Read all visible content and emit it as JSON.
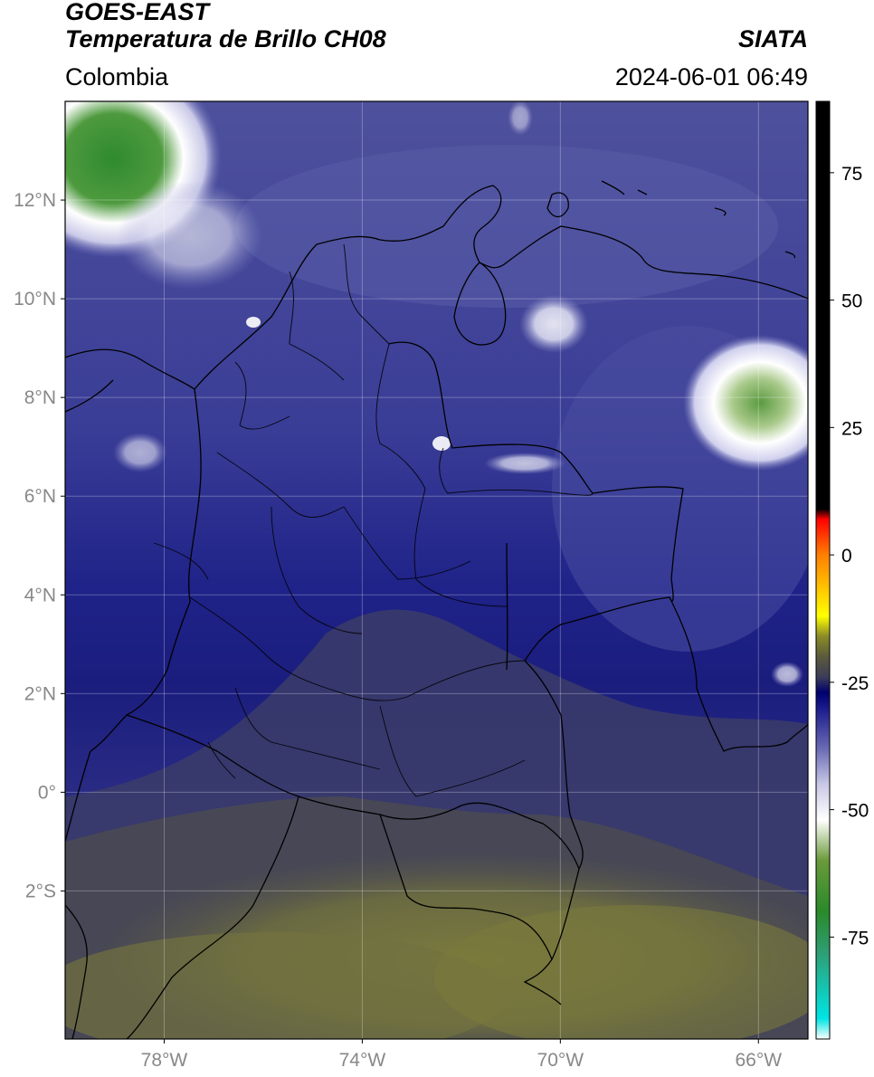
{
  "header": {
    "satellite": "GOES-EAST",
    "product": "Temperatura de Brillo CH08",
    "brand": "SIATA",
    "region": "Colombia",
    "timestamp": "2024-06-01 06:49"
  },
  "map": {
    "lon_range": [
      -80,
      -65
    ],
    "lat_range": [
      -5,
      14
    ],
    "lat_ticks": [
      {
        "value": 12,
        "label": "12°N"
      },
      {
        "value": 10,
        "label": "10°N"
      },
      {
        "value": 8,
        "label": "8°N"
      },
      {
        "value": 6,
        "label": "6°N"
      },
      {
        "value": 4,
        "label": "4°N"
      },
      {
        "value": 2,
        "label": "2°N"
      },
      {
        "value": 0,
        "label": "0°"
      },
      {
        "value": -2,
        "label": "2°S"
      }
    ],
    "lon_ticks": [
      {
        "value": -78,
        "label": "78°W"
      },
      {
        "value": -74,
        "label": "74°W"
      },
      {
        "value": -70,
        "label": "70°W"
      },
      {
        "value": -66,
        "label": "66°W"
      }
    ],
    "grid": true
  },
  "colorbar": {
    "range": [
      -95,
      89
    ],
    "ticks": [
      {
        "value": 75,
        "label": "75"
      },
      {
        "value": 50,
        "label": "50"
      },
      {
        "value": 25,
        "label": "25"
      },
      {
        "value": 0,
        "label": "0"
      },
      {
        "value": -25,
        "label": "-25"
      },
      {
        "value": -50,
        "label": "-50"
      },
      {
        "value": -75,
        "label": "-75"
      }
    ],
    "stops": [
      {
        "value": -95,
        "color": "#ffffff"
      },
      {
        "value": -91,
        "color": "#00e5e5"
      },
      {
        "value": -78,
        "color": "#2e9e74"
      },
      {
        "value": -70,
        "color": "#2a8a2a"
      },
      {
        "value": -60,
        "color": "#6a9a3a"
      },
      {
        "value": -52,
        "color": "#ffffff"
      },
      {
        "value": -45,
        "color": "#c8c8e6"
      },
      {
        "value": -38,
        "color": "#6a6ab4"
      },
      {
        "value": -30,
        "color": "#1a1a8c"
      },
      {
        "value": -27,
        "color": "#00006e"
      },
      {
        "value": -24,
        "color": "#3c3c5a"
      },
      {
        "value": -20,
        "color": "#5a5a3c"
      },
      {
        "value": -16,
        "color": "#8a8a28"
      },
      {
        "value": -12,
        "color": "#ffff00"
      },
      {
        "value": -6,
        "color": "#ffbf00"
      },
      {
        "value": 0,
        "color": "#ff7f00"
      },
      {
        "value": 7,
        "color": "#ff0000"
      },
      {
        "value": 9,
        "color": "#000000"
      },
      {
        "value": 89,
        "color": "#000000"
      }
    ]
  }
}
